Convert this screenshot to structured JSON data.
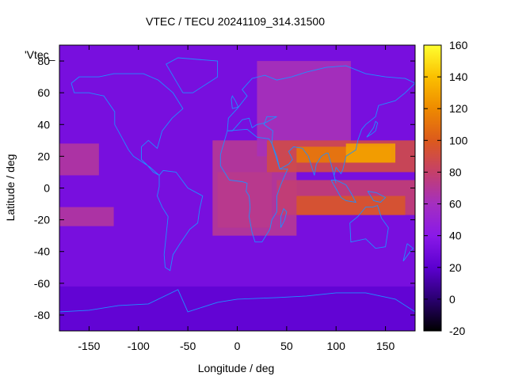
{
  "chart_data": {
    "type": "heatmap",
    "title": "VTEC / TECU 20241109_314.31500",
    "xlabel": "Longitude / deg",
    "ylabel": "Latitude / deg",
    "key_label": "'Vtec_",
    "xlim": [
      -180,
      180
    ],
    "ylim": [
      -90,
      90
    ],
    "x_ticks": [
      -150,
      -100,
      -50,
      0,
      50,
      100,
      150
    ],
    "y_ticks": [
      -80,
      -60,
      -40,
      -20,
      0,
      20,
      40,
      60,
      80
    ],
    "colorbar": {
      "range": [
        -20,
        160
      ],
      "ticks": [
        -20,
        0,
        20,
        40,
        60,
        80,
        100,
        120,
        140,
        160
      ],
      "palette": [
        "#000000",
        "#2a0070",
        "#5c00d0",
        "#8a19e8",
        "#a42fc0",
        "#c5406a",
        "#dc5a1c",
        "#ee8a00",
        "#fbc000",
        "#ffff30"
      ]
    },
    "regions": [
      {
        "lon": -180,
        "lat": 90,
        "w": 360,
        "h": 180,
        "value": 32
      },
      {
        "lon": -180,
        "lat": -62,
        "w": 360,
        "h": 28,
        "value": 22
      },
      {
        "lon": -180,
        "lat": 28,
        "w": 40,
        "h": 20,
        "value": 68
      },
      {
        "lon": -180,
        "lat": -12,
        "w": 55,
        "h": 12,
        "value": 68
      },
      {
        "lon": -25,
        "lat": 30,
        "w": 85,
        "h": 60,
        "value": 70
      },
      {
        "lon": -20,
        "lat": 10,
        "w": 55,
        "h": 35,
        "value": 72
      },
      {
        "lon": 20,
        "lat": 80,
        "w": 95,
        "h": 60,
        "value": 62
      },
      {
        "lon": 30,
        "lat": 30,
        "w": 150,
        "h": 20,
        "value": 88
      },
      {
        "lon": 60,
        "lat": 26,
        "w": 95,
        "h": 10,
        "value": 112
      },
      {
        "lon": 110,
        "lat": 28,
        "w": 50,
        "h": 12,
        "value": 128
      },
      {
        "lon": 40,
        "lat": 5,
        "w": 140,
        "h": 22,
        "value": 78
      },
      {
        "lon": 60,
        "lat": -5,
        "w": 110,
        "h": 12,
        "value": 96
      }
    ]
  }
}
